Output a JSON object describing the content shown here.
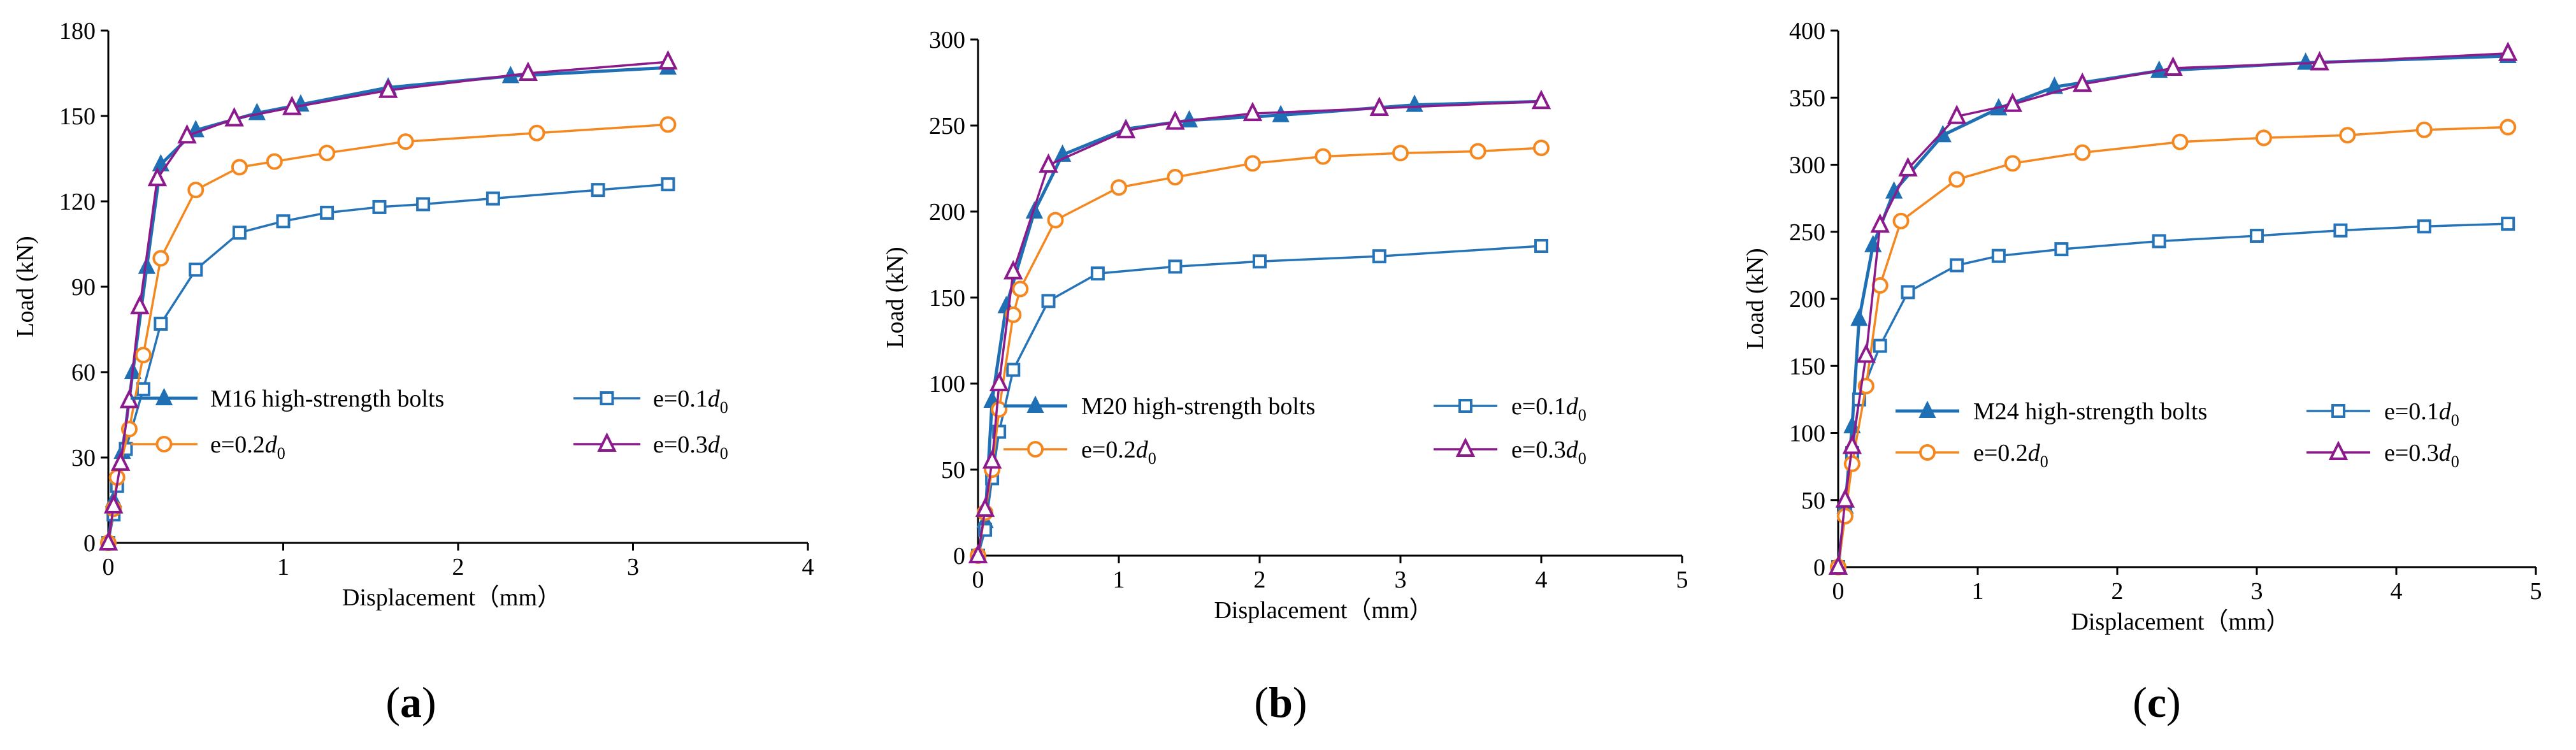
{
  "figure": {
    "xlabel": "Displacement（mm）",
    "ylabel": "Load (kN)",
    "series_styles": {
      "base": {
        "color": "#1f6fb4",
        "marker": "triangle-filled-icon"
      },
      "e01": {
        "color": "#2673b8",
        "marker": "square-open-icon"
      },
      "e02": {
        "color": "#f5871f",
        "marker": "circle-open-icon"
      },
      "e03": {
        "color": "#8c1a8c",
        "marker": "triangle-open-icon"
      }
    }
  },
  "chart_data": [
    {
      "type": "line",
      "panel_label": "(a)",
      "panel_letter": "a",
      "xlabel": "Displacement（mm）",
      "ylabel": "Load (kN)",
      "xlim": [
        0,
        4
      ],
      "ylim": [
        0,
        180
      ],
      "xticks": [
        0,
        1,
        2,
        3,
        4
      ],
      "yticks": [
        0,
        30,
        60,
        90,
        120,
        150,
        180
      ],
      "legend": [
        {
          "key": "base",
          "text": "M16 high-strength bolts",
          "sub": ""
        },
        {
          "key": "e01",
          "text": "e=0.1",
          "sub": "0"
        },
        {
          "key": "e02",
          "text": "e=0.2",
          "sub": "0"
        },
        {
          "key": "e03",
          "text": "e=0.3",
          "sub": "0"
        }
      ],
      "legend_italic": "d",
      "series": [
        {
          "key": "base",
          "name": "M16 high-strength bolts",
          "x": [
            0,
            0.03,
            0.08,
            0.14,
            0.22,
            0.3,
            0.5,
            0.85,
            1.1,
            1.6,
            2.3,
            3.2
          ],
          "y": [
            0,
            15,
            32,
            60,
            97,
            133,
            145,
            151,
            154,
            160,
            164,
            167
          ]
        },
        {
          "key": "e01",
          "name": "e=0.1d0",
          "x": [
            0,
            0.03,
            0.05,
            0.1,
            0.2,
            0.3,
            0.5,
            0.75,
            1.0,
            1.25,
            1.55,
            1.8,
            2.2,
            2.8,
            3.2
          ],
          "y": [
            0,
            10,
            20,
            33,
            54,
            77,
            96,
            109,
            113,
            116,
            118,
            119,
            121,
            124,
            126
          ]
        },
        {
          "key": "e02",
          "name": "e=0.2d0",
          "x": [
            0,
            0.03,
            0.05,
            0.12,
            0.2,
            0.3,
            0.5,
            0.75,
            0.95,
            1.25,
            1.7,
            2.45,
            3.2
          ],
          "y": [
            0,
            12,
            23,
            40,
            66,
            100,
            124,
            132,
            134,
            137,
            141,
            144,
            147
          ]
        },
        {
          "key": "e03",
          "name": "e=0.3d0",
          "x": [
            0,
            0.03,
            0.07,
            0.12,
            0.18,
            0.28,
            0.45,
            0.72,
            1.05,
            1.6,
            2.4,
            3.2
          ],
          "y": [
            0,
            13,
            28,
            50,
            83,
            128,
            143,
            149,
            153,
            159,
            165,
            169
          ]
        }
      ]
    },
    {
      "type": "line",
      "panel_label": "(b)",
      "panel_letter": "b",
      "xlabel": "Displacement（mm）",
      "ylabel": "Load (kN)",
      "xlim": [
        0,
        5
      ],
      "ylim": [
        0,
        300
      ],
      "xticks": [
        0,
        1,
        2,
        3,
        4,
        5
      ],
      "yticks": [
        0,
        50,
        100,
        150,
        200,
        250,
        300
      ],
      "legend": [
        {
          "key": "base",
          "text": "M20 high-strength bolts",
          "sub": ""
        },
        {
          "key": "e01",
          "text": "e=0.1",
          "sub": "0"
        },
        {
          "key": "e02",
          "text": "e=0.2",
          "sub": "0"
        },
        {
          "key": "e03",
          "text": "e=0.3",
          "sub": "0"
        }
      ],
      "legend_italic": "d",
      "series": [
        {
          "key": "base",
          "name": "M20 high-strength bolts",
          "x": [
            0,
            0.05,
            0.1,
            0.2,
            0.4,
            0.6,
            1.05,
            1.5,
            2.15,
            3.1,
            4.0
          ],
          "y": [
            0,
            20,
            90,
            145,
            200,
            233,
            248,
            253,
            256,
            262,
            264
          ]
        },
        {
          "key": "e01",
          "name": "e=0.1d0",
          "x": [
            0,
            0.05,
            0.1,
            0.15,
            0.25,
            0.5,
            0.85,
            1.4,
            2.0,
            2.85,
            4.0
          ],
          "y": [
            0,
            15,
            45,
            72,
            108,
            148,
            164,
            168,
            171,
            174,
            180
          ]
        },
        {
          "key": "e02",
          "name": "e=0.2d0",
          "x": [
            0,
            0.05,
            0.1,
            0.15,
            0.25,
            0.3,
            0.55,
            1.0,
            1.4,
            1.95,
            2.45,
            3.0,
            3.55,
            4.0
          ],
          "y": [
            0,
            25,
            50,
            85,
            140,
            155,
            195,
            214,
            220,
            228,
            232,
            234,
            235,
            237
          ]
        },
        {
          "key": "e03",
          "name": "e=0.3d0",
          "x": [
            0,
            0.05,
            0.1,
            0.15,
            0.25,
            0.5,
            1.05,
            1.4,
            1.95,
            2.85,
            4.0
          ],
          "y": [
            0,
            27,
            55,
            100,
            165,
            227,
            247,
            252,
            257,
            260,
            264
          ]
        }
      ]
    },
    {
      "type": "line",
      "panel_label": "(c)",
      "panel_letter": "c",
      "xlabel": "Displacement（mm）",
      "ylabel": "Load (kN)",
      "xlim": [
        0,
        5
      ],
      "ylim": [
        0,
        400
      ],
      "xticks": [
        0,
        1,
        2,
        3,
        4,
        5
      ],
      "yticks": [
        0,
        50,
        100,
        150,
        200,
        250,
        300,
        350,
        400
      ],
      "legend": [
        {
          "key": "base",
          "text": "M24 high-strength bolts",
          "sub": ""
        },
        {
          "key": "e01",
          "text": "e=0.1",
          "sub": "0"
        },
        {
          "key": "e02",
          "text": "e=0.2",
          "sub": "0"
        },
        {
          "key": "e03",
          "text": "e=0.3",
          "sub": "0"
        }
      ],
      "legend_italic": "d",
      "series": [
        {
          "key": "base",
          "name": "M24 high-strength bolts",
          "x": [
            0,
            0.05,
            0.1,
            0.15,
            0.25,
            0.4,
            0.75,
            1.15,
            1.55,
            2.3,
            3.35,
            4.8
          ],
          "y": [
            0,
            45,
            105,
            185,
            240,
            280,
            322,
            342,
            358,
            370,
            376,
            381
          ]
        },
        {
          "key": "e01",
          "name": "e=0.1d0",
          "x": [
            0,
            0.05,
            0.1,
            0.15,
            0.3,
            0.5,
            0.85,
            1.15,
            1.6,
            2.3,
            3.0,
            3.6,
            4.2,
            4.8
          ],
          "y": [
            0,
            40,
            85,
            125,
            165,
            205,
            225,
            232,
            237,
            243,
            247,
            251,
            254,
            256
          ]
        },
        {
          "key": "e02",
          "name": "e=0.2d0",
          "x": [
            0,
            0.05,
            0.1,
            0.2,
            0.3,
            0.45,
            0.85,
            1.25,
            1.75,
            2.45,
            3.05,
            3.65,
            4.2,
            4.8
          ],
          "y": [
            0,
            38,
            77,
            135,
            210,
            258,
            289,
            301,
            309,
            317,
            320,
            322,
            326,
            328
          ]
        },
        {
          "key": "e03",
          "name": "e=0.3d0",
          "x": [
            0,
            0.05,
            0.1,
            0.2,
            0.3,
            0.5,
            0.85,
            1.25,
            1.75,
            2.4,
            3.45,
            4.8
          ],
          "y": [
            0,
            50,
            90,
            158,
            255,
            297,
            336,
            345,
            360,
            372,
            376,
            383
          ]
        }
      ]
    }
  ]
}
